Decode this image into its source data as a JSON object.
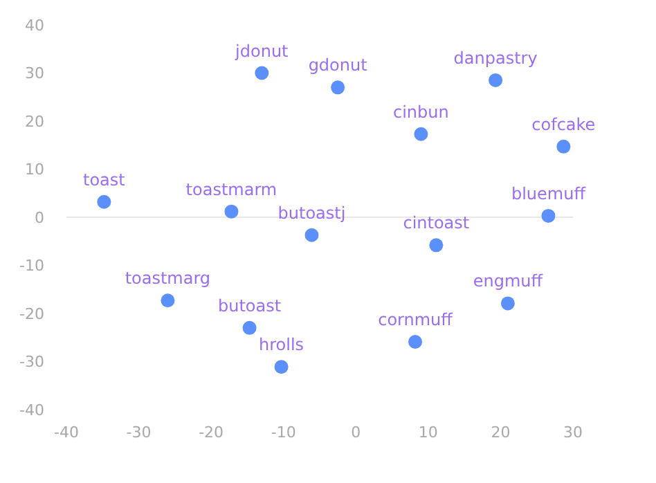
{
  "chart_data": {
    "type": "scatter",
    "x": [
      -34.8,
      -17.2,
      -13,
      -2.5,
      -6.1,
      9,
      19.3,
      28.7,
      26.6,
      11.1,
      21,
      8.2,
      -26,
      -14.7,
      -10.3
    ],
    "series": [
      {
        "color": "#5b8ff9",
        "values": [
          3.2,
          1.2,
          30,
          27,
          -3.7,
          17.3,
          28.5,
          14.7,
          0.3,
          -5.8,
          -17.9,
          -25.9,
          -17.3,
          -23,
          -31.1
        ]
      }
    ],
    "xlim": [
      -40,
      30
    ],
    "xticks": [
      -40,
      -30,
      -20,
      -10,
      0,
      10,
      20,
      30
    ],
    "ylim": [
      -40,
      40
    ],
    "yticks": [
      -40,
      -30,
      -20,
      -10,
      0,
      10,
      20,
      30,
      40
    ],
    "grid": false,
    "legend": false,
    "marker": "circle",
    "ref_lines": [
      {
        "axis": "y",
        "value": 0,
        "color": "#e8e8e8"
      }
    ],
    "annotations": [
      {
        "text": "toast",
        "x": -34.8,
        "y": 3.2
      },
      {
        "text": "toastmarm",
        "x": -17.2,
        "y": 1.2
      },
      {
        "text": "jdonut",
        "x": -13,
        "y": 30
      },
      {
        "text": "gdonut",
        "x": -2.5,
        "y": 27
      },
      {
        "text": "butoastj",
        "x": -6.1,
        "y": -3.7
      },
      {
        "text": "cinbun",
        "x": 9,
        "y": 17.3
      },
      {
        "text": "danpastry",
        "x": 19.3,
        "y": 28.5
      },
      {
        "text": "cofcake",
        "x": 28.7,
        "y": 14.7
      },
      {
        "text": "bluemuff",
        "x": 26.6,
        "y": 0.3
      },
      {
        "text": "cintoast",
        "x": 11.1,
        "y": -5.8
      },
      {
        "text": "engmuff",
        "x": 21,
        "y": -17.9
      },
      {
        "text": "cornmuff",
        "x": 8.2,
        "y": -25.9
      },
      {
        "text": "toastmarg",
        "x": -26,
        "y": -17.3
      },
      {
        "text": "butoast",
        "x": -14.7,
        "y": -23
      },
      {
        "text": "hrolls",
        "x": -10.3,
        "y": -31.1
      }
    ]
  }
}
